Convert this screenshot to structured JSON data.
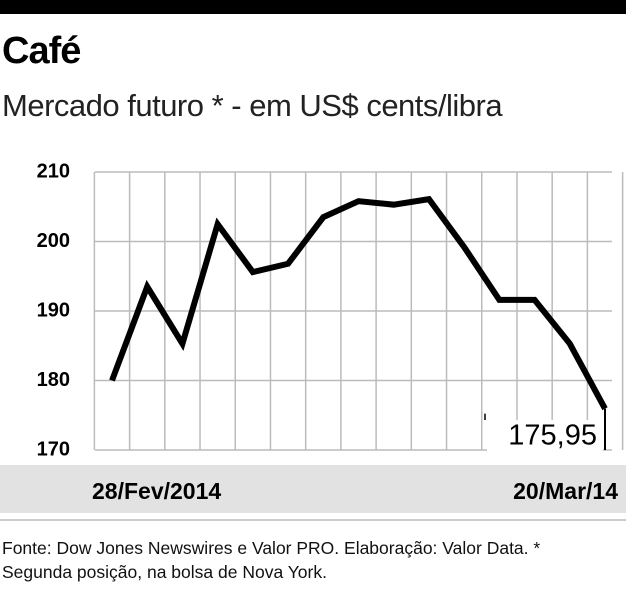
{
  "chart_data": {
    "type": "line",
    "title": "Café",
    "subtitle": "Mercado futuro * - em US$ cents/libra",
    "categories": [
      "28/Fev/2014",
      null,
      null,
      null,
      null,
      null,
      null,
      null,
      null,
      null,
      null,
      null,
      null,
      null,
      "20/Mar/14"
    ],
    "series": [
      {
        "color": "#000000",
        "values": [
          180,
          193.5,
          185.3,
          202.5,
          195.6,
          196.8,
          203.5,
          205.8,
          205.3,
          206.1,
          199.2,
          191.6,
          191.6,
          185.3,
          175.95
        ],
        "value_labels": [
          null,
          null,
          null,
          null,
          null,
          null,
          null,
          null,
          null,
          null,
          null,
          null,
          null,
          null,
          "175,95"
        ]
      }
    ],
    "ylim": [
      170,
      210
    ],
    "yticks": [
      170,
      180,
      190,
      200,
      210
    ],
    "grid": true,
    "note": "Fonte: Dow Jones Newswires e Valor PRO. Elaboração: Valor Data. * Segunda posição, na bolsa de Nova York."
  }
}
